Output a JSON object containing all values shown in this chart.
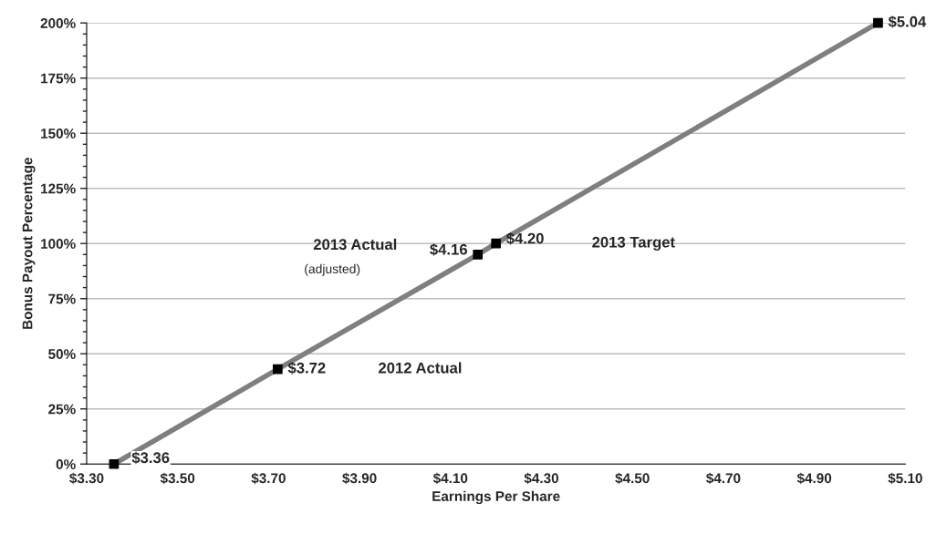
{
  "chart_data": {
    "type": "line",
    "xlabel": "Earnings Per Share",
    "ylabel": "Bonus Payout Percentage",
    "series": [
      {
        "color": "#7f7f7f",
        "x": [
          3.36,
          3.72,
          4.16,
          4.2,
          5.04
        ],
        "values": [
          0,
          43,
          95,
          100,
          200
        ]
      }
    ],
    "marker": "square",
    "grid": "y",
    "xlim": [
      3.3,
      5.1
    ],
    "ylim": [
      0,
      200
    ],
    "xticks": [
      {
        "value": 3.3,
        "label": "$3.30"
      },
      {
        "value": 3.5,
        "label": "$3.50"
      },
      {
        "value": 3.7,
        "label": "$3.70"
      },
      {
        "value": 3.9,
        "label": "$3.90"
      },
      {
        "value": 4.1,
        "label": "$4.10"
      },
      {
        "value": 4.3,
        "label": "$4.30"
      },
      {
        "value": 4.5,
        "label": "$4.50"
      },
      {
        "value": 4.7,
        "label": "$4.70"
      },
      {
        "value": 4.9,
        "label": "$4.90"
      },
      {
        "value": 5.1,
        "label": "$5.10"
      }
    ],
    "yticks": [
      {
        "value": 0,
        "label": "0%"
      },
      {
        "value": 25,
        "label": "25%"
      },
      {
        "value": 50,
        "label": "50%"
      },
      {
        "value": 75,
        "label": "75%"
      },
      {
        "value": 100,
        "label": "100%"
      },
      {
        "value": 125,
        "label": "125%"
      },
      {
        "value": 150,
        "label": "150%"
      },
      {
        "value": 175,
        "label": "175%"
      },
      {
        "value": 200,
        "label": "200%"
      }
    ],
    "annotations": [
      {
        "text": "$3.36",
        "x": 3.36,
        "y": 0
      },
      {
        "text": "$3.72",
        "x": 3.72,
        "y": 43
      },
      "2012 Actual",
      {
        "text": "$4.16",
        "x": 4.16,
        "y": 95
      },
      "2013 Actual",
      "(adjusted)",
      {
        "text": "$4.20",
        "x": 4.2,
        "y": 100
      },
      "2013 Target",
      {
        "text": "$5.04",
        "x": 5.04,
        "y": 200
      }
    ]
  }
}
